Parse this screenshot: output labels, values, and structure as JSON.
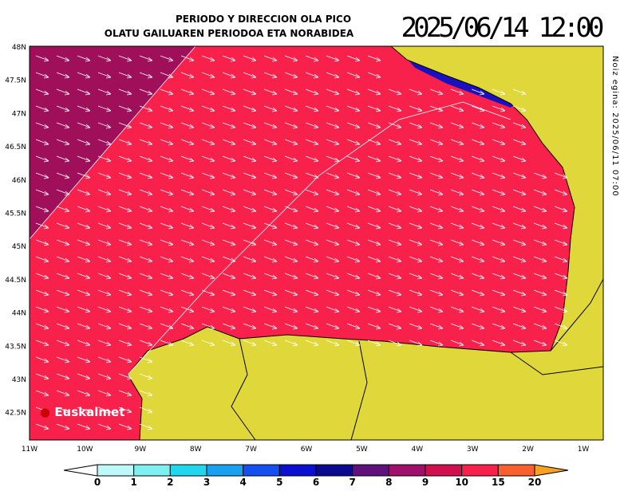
{
  "header": {
    "title_es": "PERIODO Y DIRECCION OLA PICO",
    "title_eu": "OLATU GAILUAREN PERIODOA ETA NORABIDEA",
    "datetime": "2025/06/14 12:00"
  },
  "side_note": "Noiz egina: 2025/06/11 07:00",
  "logo": "Euskalmet",
  "lat_labels": [
    "48N",
    "47.5N",
    "47N",
    "46.5N",
    "46N",
    "45.5N",
    "45N",
    "44.5N",
    "44N",
    "43.5N",
    "43N",
    "42.5N"
  ],
  "lon_labels": [
    "11W",
    "10W",
    "9W",
    "8W",
    "7W",
    "6W",
    "5W",
    "4W",
    "3W",
    "2W",
    "1W"
  ],
  "legend": {
    "labels": [
      "0",
      "1",
      "2",
      "3",
      "4",
      "5",
      "6",
      "7",
      "8",
      "9",
      "10",
      "15",
      "20"
    ],
    "colors": [
      "#ffffff",
      "#bff8f8",
      "#7ef0f0",
      "#22d6f0",
      "#1aa0f0",
      "#1450f0",
      "#0a10d0",
      "#0a0a90",
      "#60107a",
      "#a0106a",
      "#d0104e",
      "#f8214b",
      "#f86030",
      "#f8a020"
    ]
  }
}
